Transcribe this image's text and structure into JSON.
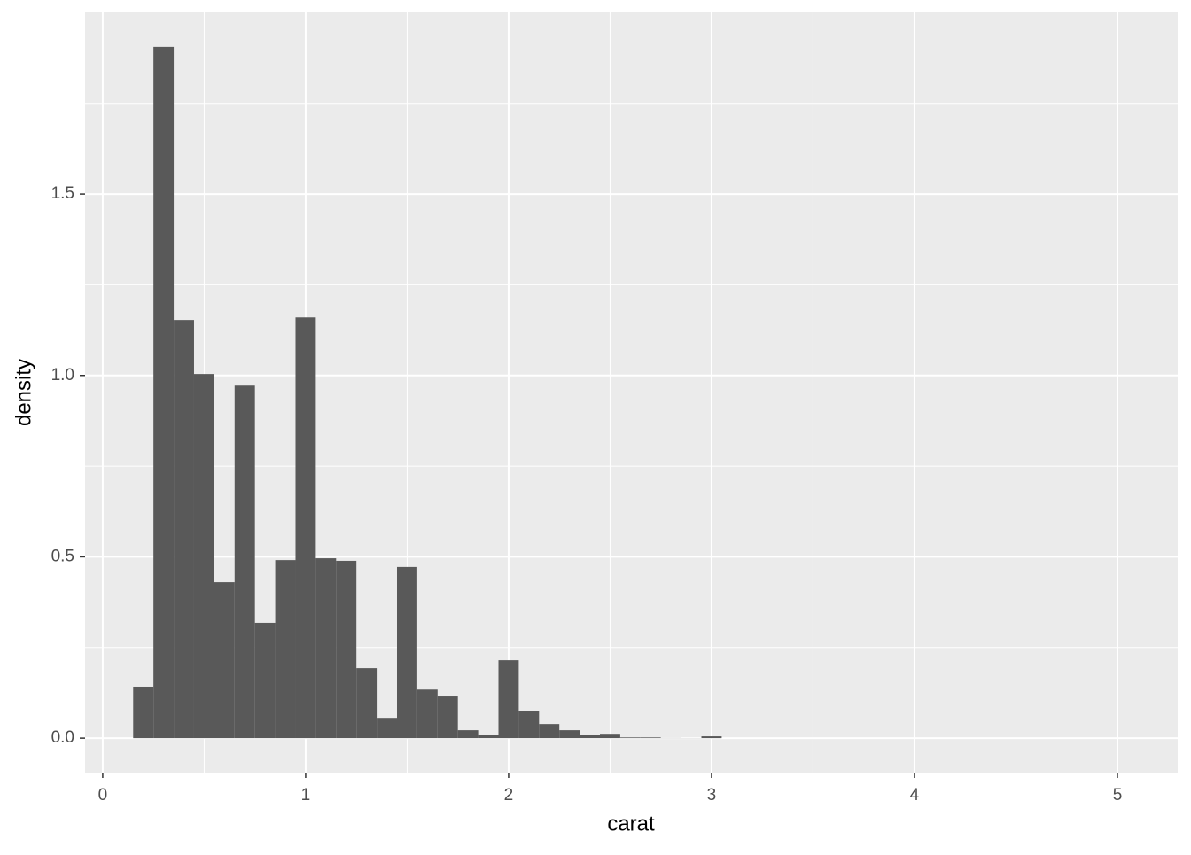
{
  "chart_data": {
    "type": "histogram",
    "x_label": "carat",
    "y_label": "density",
    "bins": [
      0.15,
      0.25,
      0.35,
      0.45,
      0.55,
      0.65,
      0.75,
      0.85,
      0.95,
      1.05,
      1.15,
      1.25,
      1.35,
      1.45,
      1.55,
      1.65,
      1.75,
      1.85,
      1.95,
      2.05,
      2.15,
      2.25,
      2.35,
      2.45,
      2.55,
      2.65,
      2.75,
      2.85,
      2.95,
      3.05
    ],
    "values": [
      0.142,
      1.906,
      1.153,
      1.004,
      0.43,
      0.972,
      0.318,
      0.491,
      1.16,
      0.496,
      0.489,
      0.193,
      0.056,
      0.472,
      0.134,
      0.115,
      0.022,
      0.01,
      0.215,
      0.076,
      0.039,
      0.022,
      0.01,
      0.012,
      0.002,
      0.002,
      0.0005,
      0.0003,
      0.005
    ],
    "color": "#595959",
    "xlim": [
      -0.087,
      5.297
    ],
    "ylim": [
      -0.095,
      2.001
    ],
    "xticks": [
      0,
      1,
      2,
      3,
      4,
      5
    ],
    "yticks": [
      {
        "value": 0,
        "label": "0.0"
      },
      0.5,
      {
        "value": 1,
        "label": "1.0"
      },
      1.5
    ],
    "grid": true
  }
}
